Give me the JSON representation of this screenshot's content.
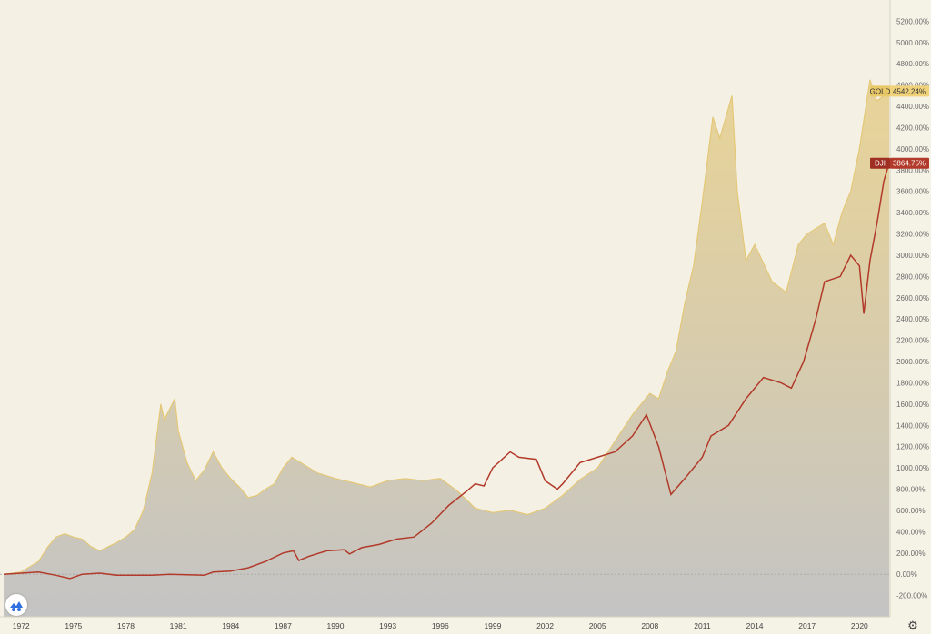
{
  "chart_data": {
    "type": "area",
    "title": "",
    "xlabel": "",
    "ylabel": "",
    "x_unit": "year",
    "xlim": [
      1971.0,
      2021.7
    ],
    "ylim": [
      -400,
      5400
    ],
    "y_ticks": [
      "-200.00%",
      "0.00%",
      "200.00%",
      "400.00%",
      "600.00%",
      "800.00%",
      "1000.00%",
      "1200.00%",
      "1400.00%",
      "1600.00%",
      "1800.00%",
      "2000.00%",
      "2200.00%",
      "2400.00%",
      "2600.00%",
      "2800.00%",
      "3000.00%",
      "3200.00%",
      "3400.00%",
      "3600.00%",
      "3800.00%",
      "4000.00%",
      "4200.00%",
      "4400.00%",
      "4600.00%",
      "4800.00%",
      "5000.00%",
      "5200.00%"
    ],
    "y_tick_values": [
      -200,
      0,
      200,
      400,
      600,
      800,
      1000,
      1200,
      1400,
      1600,
      1800,
      2000,
      2200,
      2400,
      2600,
      2800,
      3000,
      3200,
      3400,
      3600,
      3800,
      4000,
      4200,
      4400,
      4600,
      4800,
      5000,
      5200
    ],
    "x_ticks": [
      "1972",
      "1975",
      "1978",
      "1981",
      "1984",
      "1987",
      "1990",
      "1993",
      "1996",
      "1999",
      "2002",
      "2005",
      "2008",
      "2011",
      "2014",
      "2017",
      "2020"
    ],
    "x_tick_values": [
      1972,
      1975,
      1978,
      1981,
      1984,
      1987,
      1990,
      1993,
      1996,
      1999,
      2002,
      2005,
      2008,
      2011,
      2014,
      2017,
      2020
    ],
    "grid": false,
    "series": [
      {
        "name": "GOLD",
        "kind": "area",
        "color": "#e8d08a",
        "last_value_label": "4542.24%",
        "x": [
          1971.0,
          1972.0,
          1973.0,
          1973.5,
          1974.0,
          1974.5,
          1975.0,
          1975.5,
          1976.0,
          1976.5,
          1977.0,
          1977.5,
          1978.0,
          1978.5,
          1979.0,
          1979.5,
          1980.0,
          1980.2,
          1980.5,
          1980.8,
          1981.0,
          1981.5,
          1982.0,
          1982.5,
          1983.0,
          1983.5,
          1984.0,
          1984.5,
          1985.0,
          1985.5,
          1986.0,
          1986.5,
          1987.0,
          1987.5,
          1988.0,
          1989.0,
          1990.0,
          1991.0,
          1992.0,
          1993.0,
          1994.0,
          1995.0,
          1996.0,
          1997.0,
          1998.0,
          1999.0,
          2000.0,
          2001.0,
          2002.0,
          2003.0,
          2004.0,
          2005.0,
          2006.0,
          2007.0,
          2008.0,
          2008.5,
          2009.0,
          2009.5,
          2010.0,
          2010.5,
          2011.0,
          2011.6,
          2012.0,
          2012.7,
          2013.0,
          2013.5,
          2014.0,
          2015.0,
          2015.8,
          2016.5,
          2017.0,
          2018.0,
          2018.5,
          2019.0,
          2019.5,
          2020.0,
          2020.6,
          2021.0,
          2021.7
        ],
        "values": [
          0,
          20,
          120,
          250,
          350,
          380,
          350,
          330,
          260,
          220,
          260,
          300,
          350,
          420,
          600,
          950,
          1600,
          1450,
          1550,
          1650,
          1350,
          1050,
          880,
          980,
          1150,
          1000,
          900,
          820,
          720,
          740,
          800,
          850,
          1000,
          1100,
          1050,
          950,
          900,
          860,
          820,
          880,
          900,
          880,
          900,
          780,
          620,
          580,
          600,
          560,
          620,
          740,
          890,
          1000,
          1250,
          1500,
          1700,
          1650,
          1900,
          2100,
          2550,
          2900,
          3500,
          4300,
          4100,
          4500,
          3600,
          2950,
          3100,
          2750,
          2650,
          3100,
          3200,
          3300,
          3100,
          3400,
          3600,
          4000,
          4650,
          4450,
          4542.24
        ]
      },
      {
        "name": "DJI",
        "kind": "line",
        "color": "#b23a2a",
        "last_value_label": "3864.75%",
        "x": [
          1971.0,
          1972.0,
          1973.0,
          1974.0,
          1974.8,
          1975.5,
          1976.5,
          1977.5,
          1978.5,
          1979.5,
          1980.5,
          1981.5,
          1982.5,
          1983.0,
          1984.0,
          1985.0,
          1986.0,
          1987.0,
          1987.6,
          1987.9,
          1988.5,
          1989.5,
          1990.5,
          1990.8,
          1991.5,
          1992.5,
          1993.5,
          1994.5,
          1995.5,
          1996.5,
          1997.5,
          1998.0,
          1998.5,
          1999.0,
          2000.0,
          2000.5,
          2001.5,
          2002.0,
          2002.7,
          2003.0,
          2004.0,
          2005.0,
          2006.0,
          2007.0,
          2007.8,
          2008.5,
          2009.2,
          2010.0,
          2011.0,
          2011.5,
          2012.5,
          2013.5,
          2014.5,
          2015.5,
          2016.1,
          2016.8,
          2017.5,
          2018.0,
          2018.9,
          2019.5,
          2020.0,
          2020.25,
          2020.6,
          2021.0,
          2021.4,
          2021.7
        ],
        "values": [
          0,
          10,
          20,
          -10,
          -40,
          0,
          10,
          -10,
          -10,
          -10,
          0,
          -5,
          -10,
          20,
          30,
          60,
          120,
          200,
          220,
          130,
          170,
          220,
          230,
          190,
          250,
          280,
          330,
          350,
          480,
          650,
          780,
          850,
          830,
          1000,
          1150,
          1100,
          1080,
          880,
          800,
          850,
          1050,
          1100,
          1150,
          1300,
          1500,
          1200,
          750,
          900,
          1100,
          1300,
          1400,
          1650,
          1850,
          1800,
          1750,
          2000,
          2400,
          2750,
          2800,
          3000,
          2900,
          2450,
          2950,
          3300,
          3700,
          3864.75
        ]
      }
    ],
    "legend": "right-edge price tags"
  }
}
